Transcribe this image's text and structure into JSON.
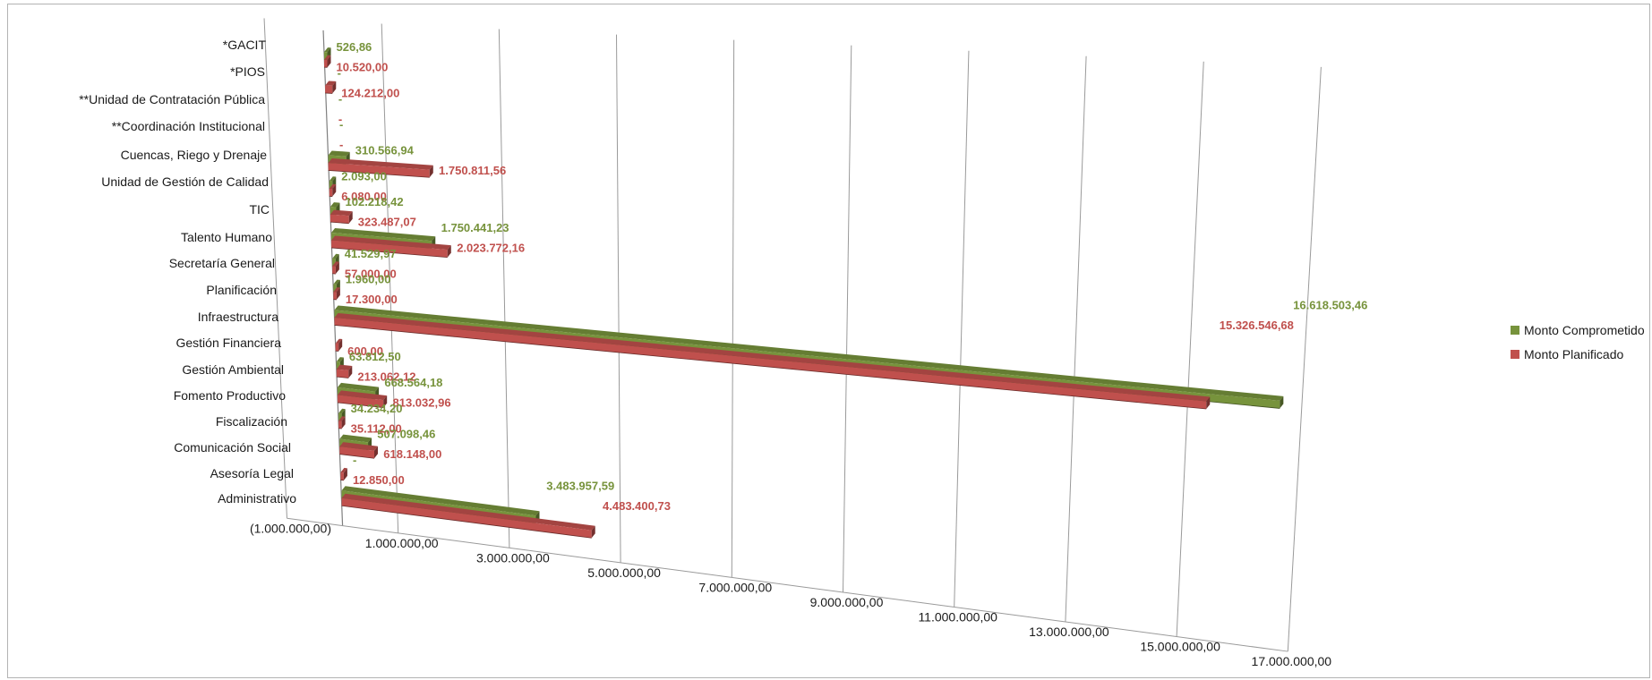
{
  "chart_data": {
    "type": "bar",
    "orientation": "horizontal",
    "style": "3d-perspective",
    "categories": [
      "*GACIT",
      "*PIOS",
      "**Unidad de Contratación Pública",
      "**Coordinación Institucional",
      "Cuencas, Riego y Drenaje",
      "Unidad de Gestión de Calidad",
      "TIC",
      "Talento Humano",
      "Secretaría General",
      "Planificación",
      "Infraestructura",
      "Gestión Financiera",
      "Gestión Ambiental",
      "Fomento Productivo",
      "Fiscalización",
      "Comunicación Social",
      "Asesoría Legal",
      "Administrativo"
    ],
    "series": [
      {
        "name": "Monto Comprometido",
        "color": "#77933c",
        "values": [
          526.86,
          0,
          0,
          0,
          310566.94,
          2093.0,
          102218.42,
          1750441.23,
          41529.97,
          1960.0,
          16618503.46,
          0,
          63812.5,
          668564.18,
          34234.2,
          507098.46,
          0,
          3483957.59
        ],
        "labels": [
          "526,86",
          "-",
          "-",
          "-",
          "310.566,94",
          "2.093,00",
          "102.218,42",
          "1.750.441,23",
          "41.529,97",
          "1.960,00",
          "16.618.503,46",
          "",
          "63.812,50",
          "668.564,18",
          "34.234,20",
          "507.098,46",
          "-",
          "3.483.957,59"
        ]
      },
      {
        "name": "Monto Planificado",
        "color": "#c0504d",
        "values": [
          10520.0,
          124212.0,
          0,
          0,
          1750811.56,
          6080.0,
          323487.07,
          2023772.16,
          57000.0,
          17300.0,
          15326546.68,
          600.0,
          213062.12,
          813032.96,
          35112.0,
          618148.0,
          12850.0,
          4483400.73
        ],
        "labels": [
          "10.520,00",
          "124.212,00",
          "-",
          "-",
          "1.750.811,56",
          "6.080,00",
          "323.487,07",
          "2.023.772,16",
          "57.000,00",
          "17.300,00",
          "15.326.546,68",
          "600,00",
          "213.062,12",
          "813.032,96",
          "35.112,00",
          "618.148,00",
          "12.850,00",
          "4.483.400,73"
        ]
      }
    ],
    "xlim": [
      -1000000,
      17000000
    ],
    "x_ticks": [
      -1000000,
      1000000,
      3000000,
      5000000,
      7000000,
      9000000,
      11000000,
      13000000,
      15000000,
      17000000
    ],
    "x_tick_labels": [
      "(1.000.000,00)",
      "1.000.000,00",
      "3.000.000,00",
      "5.000.000,00",
      "7.000.000,00",
      "9.000.000,00",
      "11.000.000,00",
      "13.000.000,00",
      "15.000.000,00",
      "17.000.000,00"
    ],
    "grid": true,
    "legend": "right"
  }
}
